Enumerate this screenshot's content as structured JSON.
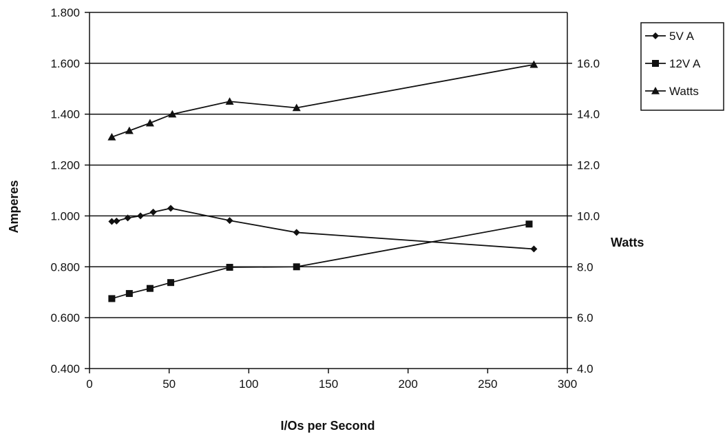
{
  "chart_data": {
    "type": "line",
    "xlabel": "I/Os per Second",
    "ylabel": "Amperes",
    "y2label": "Watts",
    "xlim": [
      0,
      300
    ],
    "ylim": [
      0.4,
      1.8
    ],
    "y2lim": [
      4.0,
      18.0
    ],
    "x_ticks": [
      "0",
      "50",
      "100",
      "150",
      "200",
      "250",
      "300"
    ],
    "y_ticks": [
      "0.400",
      "0.600",
      "0.800",
      "1.000",
      "1.200",
      "1.400",
      "1.600",
      "1.800"
    ],
    "y2_ticks": [
      "4.0",
      "6.0",
      "8.0",
      "10.0",
      "12.0",
      "14.0",
      "16.0"
    ],
    "grid": true,
    "legend_position": "top-right",
    "series": [
      {
        "name": "5V A",
        "axis": "left",
        "marker": "diamond",
        "x": [
          14,
          17,
          24,
          32,
          40,
          51,
          88,
          130,
          279
        ],
        "y": [
          0.978,
          0.98,
          0.992,
          1.0,
          1.015,
          1.03,
          0.982,
          0.935,
          0.87
        ]
      },
      {
        "name": "12V A",
        "axis": "left",
        "marker": "square",
        "x": [
          14,
          25,
          38,
          51,
          88,
          130,
          276
        ],
        "y": [
          0.675,
          0.695,
          0.715,
          0.738,
          0.798,
          0.8,
          0.968
        ]
      },
      {
        "name": "Watts",
        "axis": "right",
        "marker": "triangle",
        "x": [
          14,
          25,
          38,
          52,
          88,
          130,
          279
        ],
        "y": [
          13.1,
          13.35,
          13.65,
          14.0,
          14.5,
          14.25,
          15.95
        ]
      }
    ]
  }
}
